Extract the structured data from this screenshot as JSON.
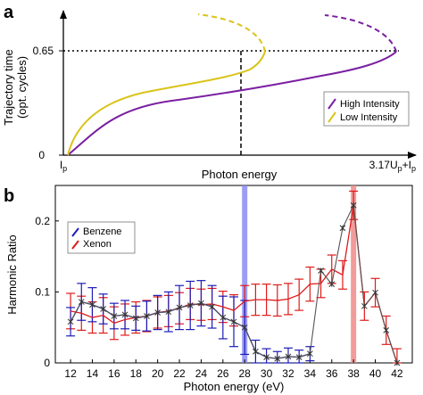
{
  "chart_data": [
    {
      "panel_label": "a",
      "type": "line",
      "xlabel": "Photon energy",
      "ylabel": "Trajectory time",
      "ylabel_sub": "(opt. cycles)",
      "x_tick_left": "I",
      "x_tick_left_sub": "p",
      "x_tick_right_parts": [
        "3.17U",
        "p",
        "+I",
        "p"
      ],
      "y_ticks": [
        "0",
        "0.65"
      ],
      "y_marker": 0.65,
      "legend_position": "right",
      "colors": {
        "high": "#7a1fa2",
        "low": "#d9c41a"
      },
      "series": [
        {
          "name": "High Intensity",
          "color": "#7a1fa2"
        },
        {
          "name": "Low Intensity",
          "color": "#d9c41a"
        }
      ]
    },
    {
      "panel_label": "b",
      "type": "line",
      "xlabel": "Photon energy (eV)",
      "ylabel": "Harmonic Ratio",
      "xlim": [
        10.6,
        43.4
      ],
      "ylim": [
        0,
        0.25
      ],
      "x_ticks": [
        12,
        14,
        16,
        18,
        20,
        22,
        24,
        26,
        28,
        30,
        32,
        34,
        36,
        38,
        40,
        42
      ],
      "y_ticks": [
        0,
        0.1,
        0.2
      ],
      "y_tick_labels": [
        "0",
        "0.1",
        "0.2"
      ],
      "highlight_bands": [
        {
          "x": 28,
          "color": "#8a8cf2"
        },
        {
          "x": 38,
          "color": "#f08a8a"
        }
      ],
      "legend_position": "top-left",
      "series": [
        {
          "name": "Benzene",
          "color": "#1c1cb8",
          "x": [
            12,
            13,
            14,
            15,
            16,
            17,
            18,
            19,
            20,
            21,
            22,
            23,
            24,
            25,
            26,
            27,
            28,
            29,
            30,
            31,
            32,
            33,
            34
          ],
          "y": [
            0.058,
            0.086,
            0.082,
            0.076,
            0.066,
            0.068,
            0.063,
            0.066,
            0.071,
            0.072,
            0.078,
            0.081,
            0.084,
            0.079,
            0.064,
            0.058,
            0.05,
            0.016,
            0.008,
            0.006,
            0.009,
            0.008,
            0.013
          ],
          "err": [
            0.02,
            0.026,
            0.024,
            0.021,
            0.018,
            0.02,
            0.017,
            0.021,
            0.024,
            0.028,
            0.031,
            0.034,
            0.032,
            0.03,
            0.03,
            0.035,
            0.038,
            0.016,
            0.012,
            0.01,
            0.012,
            0.01,
            0.01
          ]
        },
        {
          "name": "Xenon",
          "color": "#e01a1a",
          "x": [
            12,
            13,
            14,
            15,
            16,
            17,
            18,
            19,
            20,
            21,
            22,
            23,
            24,
            25,
            26,
            27,
            28,
            29,
            30,
            31,
            32,
            33,
            34,
            35,
            36,
            37,
            38,
            39,
            40,
            41,
            42
          ],
          "y": [
            0.073,
            0.07,
            0.064,
            0.067,
            0.056,
            0.061,
            0.064,
            0.066,
            0.071,
            0.073,
            0.077,
            0.083,
            0.082,
            0.083,
            0.079,
            0.074,
            0.087,
            0.089,
            0.089,
            0.088,
            0.09,
            0.096,
            0.111,
            0.112,
            0.132,
            0.124,
            0.222,
            0.08,
            0.099,
            0.046,
            0.0
          ],
          "err": [
            0.025,
            0.024,
            0.022,
            0.025,
            0.023,
            0.022,
            0.022,
            0.022,
            0.022,
            0.022,
            0.022,
            0.022,
            0.022,
            0.022,
            0.022,
            0.022,
            0.022,
            0.022,
            0.022,
            0.022,
            0.022,
            0.022,
            0.024,
            0.02,
            0.02,
            0.02,
            0.02,
            0.02,
            0.02,
            0.02,
            0.02
          ]
        },
        {
          "name": "",
          "color": "#555555",
          "x": [
            12,
            13,
            14,
            15,
            16,
            17,
            18,
            19,
            20,
            21,
            22,
            23,
            24,
            25,
            26,
            27,
            28,
            29,
            30,
            31,
            32,
            33,
            34,
            35,
            36,
            37,
            38,
            39,
            40,
            41,
            42
          ],
          "y": [
            0.058,
            0.086,
            0.082,
            0.076,
            0.066,
            0.068,
            0.063,
            0.066,
            0.071,
            0.072,
            0.078,
            0.081,
            0.084,
            0.079,
            0.064,
            0.058,
            0.05,
            0.016,
            0.008,
            0.006,
            0.009,
            0.008,
            0.013,
            0.13,
            0.111,
            0.19,
            0.222,
            0.08,
            0.099,
            0.046,
            0.0
          ]
        }
      ]
    }
  ]
}
